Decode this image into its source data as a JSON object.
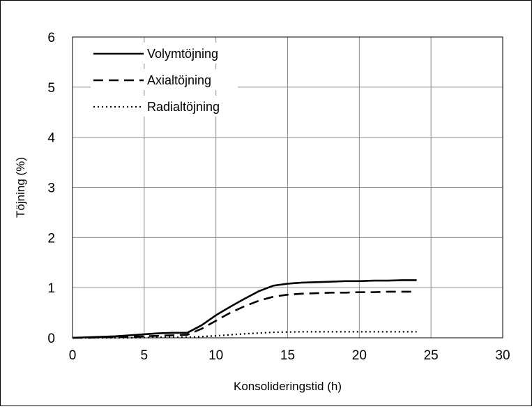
{
  "chart_data": {
    "type": "line",
    "title": "",
    "xlabel": "Konsolideringstid (h)",
    "ylabel": "Töjning (%)",
    "xlim": [
      0,
      30
    ],
    "ylim": [
      0,
      6
    ],
    "xticks": [
      "0",
      "5",
      "10",
      "15",
      "20",
      "25",
      "30"
    ],
    "yticks": [
      "0",
      "1",
      "2",
      "3",
      "4",
      "5",
      "6"
    ],
    "grid": true,
    "legend_position": "top-left",
    "series": [
      {
        "name": "Volymtöjning",
        "style": "solid",
        "color": "#000000",
        "x": [
          0,
          1,
          2,
          3,
          4,
          5,
          6,
          7,
          8,
          9,
          10,
          11,
          12,
          13,
          14,
          14.5,
          15,
          16,
          17,
          18,
          19,
          20,
          21,
          22,
          23,
          24
        ],
        "y": [
          0.0,
          0.01,
          0.02,
          0.03,
          0.05,
          0.07,
          0.09,
          0.1,
          0.1,
          0.25,
          0.45,
          0.62,
          0.78,
          0.93,
          1.04,
          1.06,
          1.08,
          1.1,
          1.11,
          1.12,
          1.13,
          1.13,
          1.14,
          1.14,
          1.15,
          1.15
        ]
      },
      {
        "name": "Axialtöjning",
        "style": "dashed",
        "color": "#000000",
        "x": [
          0,
          1,
          2,
          3,
          4,
          5,
          6,
          7,
          8,
          9,
          10,
          11,
          12,
          13,
          14,
          15,
          16,
          17,
          18,
          19,
          20,
          21,
          22,
          23,
          24
        ],
        "y": [
          0.0,
          0.0,
          0.01,
          0.01,
          0.02,
          0.03,
          0.04,
          0.05,
          0.06,
          0.18,
          0.34,
          0.5,
          0.63,
          0.74,
          0.82,
          0.86,
          0.88,
          0.89,
          0.9,
          0.9,
          0.91,
          0.91,
          0.92,
          0.92,
          0.92
        ]
      },
      {
        "name": "Radialtöjning",
        "style": "dotted",
        "color": "#000000",
        "x": [
          0,
          2,
          4,
          6,
          8,
          10,
          12,
          14,
          16,
          18,
          20,
          22,
          24
        ],
        "y": [
          0.0,
          0.0,
          0.0,
          0.01,
          0.01,
          0.04,
          0.08,
          0.11,
          0.12,
          0.12,
          0.12,
          0.12,
          0.12
        ]
      }
    ]
  }
}
